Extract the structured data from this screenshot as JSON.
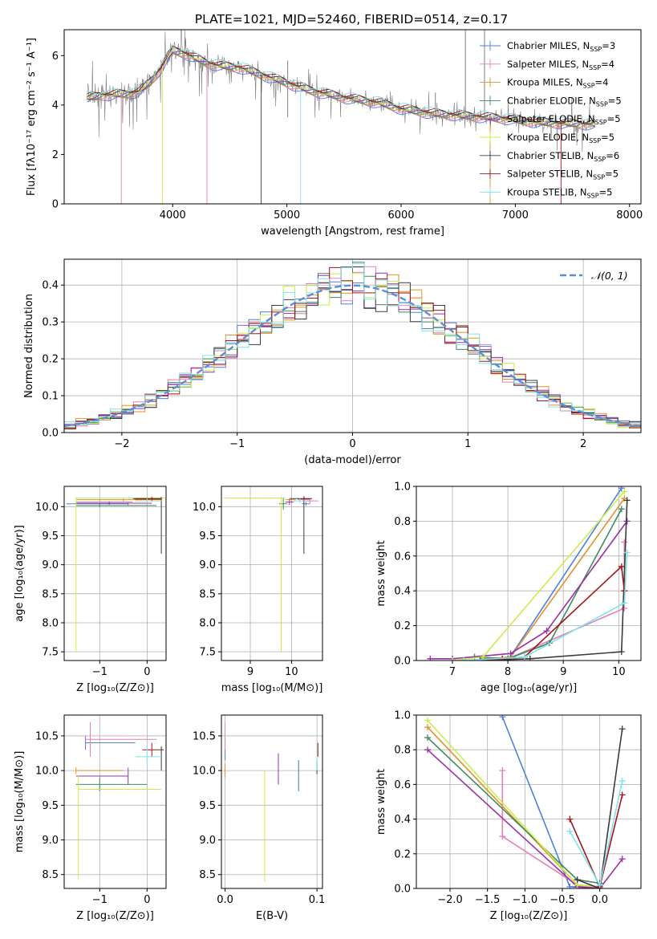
{
  "figure_title": "PLATE=1021, MJD=52460, FIBERID=0514, z=0.17",
  "colors": {
    "data": "#808080",
    "series": [
      "#4f7fe0",
      "#e57fb7",
      "#e0922a",
      "#3f8a5e",
      "#9b2fa8",
      "#c9ee4a",
      "#3b3b3b",
      "#a8121a",
      "#7fe3ec"
    ]
  },
  "chart_data": [
    {
      "id": "spectrum",
      "type": "line",
      "xlabel": "wavelength [Angstrom, rest frame]",
      "ylabel": "Flux [fλ10⁻¹⁷ erg cm⁻² s⁻¹ A⁻¹]",
      "xlim": [
        3050,
        8100
      ],
      "ylim": [
        0,
        7.05
      ],
      "xticks": [
        4000,
        5000,
        6000,
        7000,
        8000
      ],
      "yticks": [
        0,
        2,
        4,
        6
      ],
      "grid": false,
      "legend_position": "top-right",
      "legend": [
        {
          "label": "Chabrier MILES, N",
          "sub": "SSP",
          "tail": "=3"
        },
        {
          "label": "Salpeter MILES, N",
          "sub": "SSP",
          "tail": "=4"
        },
        {
          "label": "Kroupa MILES, N",
          "sub": "SSP",
          "tail": "=4"
        },
        {
          "label": "Chabrier ELODIE, N",
          "sub": "SSP",
          "tail": "=5"
        },
        {
          "label": "Salpeter ELODIE, N",
          "sub": "SSP",
          "tail": "=5"
        },
        {
          "label": "Kroupa ELODIE, N",
          "sub": "SSP",
          "tail": "=5"
        },
        {
          "label": "Chabrier STELIB, N",
          "sub": "SSP",
          "tail": "=6"
        },
        {
          "label": "Salpeter STELIB, N",
          "sub": "SSP",
          "tail": "=5"
        },
        {
          "label": "Kroupa STELIB, N",
          "sub": "SSP",
          "tail": "=5"
        }
      ],
      "continuum": {
        "x": [
          3200,
          3400,
          3600,
          3700,
          3800,
          3900,
          3950,
          4000,
          4100,
          4200,
          4300,
          4400,
          4600,
          4800,
          5000,
          5200,
          5500,
          5800,
          6000,
          6300,
          6600,
          6900,
          7200,
          7500,
          7750
        ],
        "y": [
          4.25,
          4.4,
          4.45,
          4.55,
          4.9,
          5.5,
          5.9,
          6.2,
          6.1,
          5.9,
          5.7,
          5.6,
          5.5,
          5.2,
          4.9,
          4.6,
          4.3,
          4.1,
          3.85,
          3.65,
          3.55,
          3.45,
          3.3,
          3.25,
          3.2
        ]
      }
    },
    {
      "id": "residuals",
      "type": "histogram",
      "xlabel": "(data-model)/error",
      "ylabel": "Normed distribution",
      "xlim": [
        -2.5,
        2.5
      ],
      "ylim": [
        0,
        0.47
      ],
      "xticks": [
        -2,
        -1,
        0,
        1,
        2
      ],
      "yticks": [
        0.0,
        0.1,
        0.2,
        0.3,
        0.4
      ],
      "grid": true,
      "legend": "𝒩(0, 1)",
      "legend_position": "top-right",
      "bins": [
        -2.5,
        2.5,
        50
      ]
    },
    {
      "id": "age-vs-Z",
      "type": "errorbar",
      "xlabel": "Z [log₁₀(Z/Z⊙)]",
      "ylabel": "age  [log₁₀(age/yr)]",
      "xlim": [
        -1.75,
        0.4
      ],
      "ylim": [
        7.35,
        10.35
      ],
      "xticks": [
        -1,
        0
      ],
      "yticks": [
        7.5,
        8.0,
        8.5,
        9.0,
        9.5,
        10.0
      ],
      "grid": true,
      "points": [
        {
          "s": 0,
          "x": -0.4,
          "xe": [
            1.3,
            0
          ],
          "y": 10.05,
          "ye": [
            0.03,
            0.03
          ]
        },
        {
          "s": 1,
          "x": -1.0,
          "xe": [
            0.5,
            0.7
          ],
          "y": 10.08,
          "ye": [
            0.04,
            0.04
          ]
        },
        {
          "s": 2,
          "x": -0.5,
          "xe": [
            1.0,
            0.8
          ],
          "y": 10.12,
          "ye": [
            0.03,
            0.03
          ]
        },
        {
          "s": 3,
          "x": -1.0,
          "xe": [
            0.5,
            1.2
          ],
          "y": 10.02,
          "ye": [
            0.03,
            0.03
          ]
        },
        {
          "s": 4,
          "x": -0.8,
          "xe": [
            0.7,
            0.9
          ],
          "y": 10.06,
          "ye": [
            0.03,
            0.03
          ]
        },
        {
          "s": 5,
          "x": -1.5,
          "xe": [
            0,
            1.9
          ],
          "y": 10.15,
          "ye": [
            2.65,
            0.02
          ]
        },
        {
          "s": 6,
          "x": 0.3,
          "xe": [
            0.6,
            0
          ],
          "y": 10.14,
          "ye": [
            0.95,
            0.03
          ]
        },
        {
          "s": 7,
          "x": 0.1,
          "xe": [
            0.35,
            0.2
          ],
          "y": 10.13,
          "ye": [
            0.04,
            0.04
          ]
        },
        {
          "s": 8,
          "x": 0.0,
          "xe": [
            0.25,
            0.3
          ],
          "y": 10.1,
          "ye": [
            0.04,
            0.04
          ]
        }
      ]
    },
    {
      "id": "age-vs-mass",
      "type": "errorbar",
      "xlabel": "mass [log₁₀(M/M⊙)]",
      "ylabel": "",
      "xlim": [
        8.3,
        10.75
      ],
      "ylim": [
        7.35,
        10.35
      ],
      "xticks": [
        9,
        10
      ],
      "yticks": [
        7.5,
        8.0,
        8.5,
        9.0,
        9.5,
        10.0
      ],
      "grid": true,
      "points": [
        {
          "s": 0,
          "x": 10.35,
          "xe": [
            0.1,
            0.1
          ],
          "y": 10.05,
          "ye": [
            0.03,
            0.03
          ]
        },
        {
          "s": 1,
          "x": 10.45,
          "xe": [
            0.2,
            0.2
          ],
          "y": 10.1,
          "ye": [
            0.04,
            0.04
          ]
        },
        {
          "s": 2,
          "x": 10.0,
          "xe": [
            0.15,
            0.1
          ],
          "y": 10.12,
          "ye": [
            0.03,
            0.03
          ]
        },
        {
          "s": 3,
          "x": 9.8,
          "xe": [
            0.1,
            0.1
          ],
          "y": 10.05,
          "ye": [
            0.1,
            0.1
          ]
        },
        {
          "s": 4,
          "x": 9.95,
          "xe": [
            0.1,
            0.1
          ],
          "y": 10.08,
          "ye": [
            0.05,
            0.05
          ]
        },
        {
          "s": 5,
          "x": 9.75,
          "xe": [
            1.4,
            0.1
          ],
          "y": 10.15,
          "ye": [
            2.65,
            0.02
          ]
        },
        {
          "s": 6,
          "x": 10.3,
          "xe": [
            0.35,
            0.2
          ],
          "y": 10.14,
          "ye": [
            0.95,
            0.03
          ]
        },
        {
          "s": 7,
          "x": 10.3,
          "xe": [
            0.15,
            0.15
          ],
          "y": 10.13,
          "ye": [
            0.05,
            0.05
          ]
        },
        {
          "s": 8,
          "x": 10.2,
          "xe": [
            0.15,
            0.15
          ],
          "y": 10.1,
          "ye": [
            0.04,
            0.04
          ]
        }
      ]
    },
    {
      "id": "massweight-vs-age",
      "type": "line",
      "xlabel": "age  [log₁₀(age/yr)]",
      "ylabel": "mass weight",
      "xlim": [
        6.35,
        10.4
      ],
      "ylim": [
        0,
        1.0
      ],
      "xticks": [
        7,
        8,
        9,
        10
      ],
      "yticks": [
        0.0,
        0.2,
        0.4,
        0.6,
        0.8,
        1.0
      ],
      "grid": true,
      "series": [
        {
          "s": 0,
          "x": [
            7.55,
            8.0,
            10.05
          ],
          "y": [
            0.01,
            0.0,
            0.99
          ]
        },
        {
          "s": 1,
          "x": [
            7.5,
            8.0,
            10.1,
            10.1
          ],
          "y": [
            0.0,
            0.01,
            0.3,
            0.68
          ]
        },
        {
          "s": 2,
          "x": [
            7.6,
            8.05,
            10.1
          ],
          "y": [
            0.01,
            0.02,
            0.93
          ]
        },
        {
          "s": 3,
          "x": [
            7.4,
            8.0,
            8.75,
            10.05
          ],
          "y": [
            0.02,
            0.01,
            0.1,
            0.87
          ]
        },
        {
          "s": 4,
          "x": [
            6.6,
            7.0,
            8.05,
            8.7,
            10.15
          ],
          "y": [
            0.01,
            0.01,
            0.04,
            0.17,
            0.8
          ]
        },
        {
          "s": 5,
          "x": [
            7.0,
            7.55,
            10.1
          ],
          "y": [
            0.0,
            0.02,
            0.97
          ]
        },
        {
          "s": 6,
          "x": [
            7.5,
            8.4,
            10.05,
            10.15
          ],
          "y": [
            0.0,
            0.01,
            0.05,
            0.92
          ]
        },
        {
          "s": 7,
          "x": [
            7.5,
            7.9,
            8.3,
            10.05,
            10.1
          ],
          "y": [
            0.0,
            0.01,
            0.02,
            0.54,
            0.4
          ]
        },
        {
          "s": 8,
          "x": [
            7.2,
            8.3,
            10.1,
            10.15
          ],
          "y": [
            0.0,
            0.02,
            0.33,
            0.62
          ]
        }
      ]
    },
    {
      "id": "mass-vs-Z",
      "type": "errorbar",
      "xlabel": "Z [log₁₀(Z/Z⊙)]",
      "ylabel": "mass [log₁₀(M/M⊙)]",
      "xlim": [
        -1.75,
        0.4
      ],
      "ylim": [
        8.3,
        10.8
      ],
      "xticks": [
        -1,
        0
      ],
      "yticks": [
        8.5,
        9.0,
        9.5,
        10.0,
        10.5
      ],
      "grid": true,
      "points": [
        {
          "s": 0,
          "x": -1.3,
          "xe": [
            0,
            1.05
          ],
          "y": 10.4,
          "ye": [
            0.1,
            0.1
          ]
        },
        {
          "s": 1,
          "x": -1.2,
          "xe": [
            0.1,
            1.4
          ],
          "y": 10.45,
          "ye": [
            0.25,
            0.25
          ]
        },
        {
          "s": 2,
          "x": -1.5,
          "xe": [
            0,
            1.0
          ],
          "y": 10.0,
          "ye": [
            0.05,
            0.05
          ]
        },
        {
          "s": 3,
          "x": -1.0,
          "xe": [
            0.5,
            1.0
          ],
          "y": 9.8,
          "ye": [
            0.1,
            0.1
          ]
        },
        {
          "s": 4,
          "x": -0.4,
          "xe": [
            1.1,
            0
          ],
          "y": 9.92,
          "ye": [
            0.12,
            0.12
          ]
        },
        {
          "s": 5,
          "x": -1.45,
          "xe": [
            0,
            1.75
          ],
          "y": 9.73,
          "ye": [
            1.3,
            0.2
          ]
        },
        {
          "s": 6,
          "x": 0.3,
          "xe": [
            0,
            0.05
          ],
          "y": 10.3,
          "ye": [
            0.3,
            0.05
          ]
        },
        {
          "s": 7,
          "x": 0.1,
          "xe": [
            0.2,
            0.2
          ],
          "y": 10.3,
          "ye": [
            0.1,
            0.1
          ]
        },
        {
          "s": 8,
          "x": 0.0,
          "xe": [
            0.25,
            0.3
          ],
          "y": 10.2,
          "ye": [
            0.15,
            0.15
          ]
        }
      ]
    },
    {
      "id": "mass-vs-ebv",
      "type": "errorbar",
      "xlabel": "E(B-V)",
      "ylabel": "",
      "xlim": [
        -0.004,
        0.106
      ],
      "ylim": [
        8.3,
        10.8
      ],
      "xticks": [
        0.0,
        0.1
      ],
      "yticks": [
        8.5,
        9.0,
        9.5,
        10.0,
        10.5
      ],
      "grid": true,
      "points": [
        {
          "s": 0,
          "x": 0.0,
          "y": 10.3,
          "ye": [
            0.15,
            0.15
          ]
        },
        {
          "s": 1,
          "x": 0.0,
          "y": 10.5,
          "ye": [
            0.2,
            0.2
          ]
        },
        {
          "s": 2,
          "x": 0.0,
          "y": 10.0,
          "ye": [
            0.1,
            0.1
          ]
        },
        {
          "s": 3,
          "x": 0.08,
          "y": 9.9,
          "ye": [
            0.2,
            0.25
          ]
        },
        {
          "s": 4,
          "x": 0.058,
          "y": 10.0,
          "ye": [
            0.2,
            0.25
          ]
        },
        {
          "s": 5,
          "x": 0.043,
          "y": 9.2,
          "ye": [
            0.8,
            0.8
          ]
        },
        {
          "s": 6,
          "x": 0.1,
          "y": 10.05,
          "ye": [
            0.1,
            0.1
          ]
        },
        {
          "s": 7,
          "x": 0.101,
          "y": 10.3,
          "ye": [
            0.1,
            0.1
          ]
        },
        {
          "s": 8,
          "x": 0.1,
          "y": 10.1,
          "ye": [
            0.1,
            0.1
          ]
        }
      ]
    },
    {
      "id": "massweight-vs-Z",
      "type": "line",
      "xlabel": "Z [log₁₀(Z/Z⊙)]",
      "ylabel": "mass weight",
      "xlim": [
        -2.45,
        0.55
      ],
      "ylim": [
        0,
        1.0
      ],
      "xticks": [
        -2.0,
        -1.5,
        -1.0,
        -0.5,
        0.0
      ],
      "yticks": [
        0.0,
        0.2,
        0.4,
        0.6,
        0.8,
        1.0
      ],
      "grid": true,
      "series": [
        {
          "s": 0,
          "x": [
            -1.3,
            -0.4,
            0.0
          ],
          "y": [
            0.99,
            0.01,
            0.0
          ]
        },
        {
          "s": 1,
          "x": [
            -1.3,
            -1.3,
            -0.3,
            0.0
          ],
          "y": [
            0.68,
            0.3,
            0.02,
            0.0
          ]
        },
        {
          "s": 2,
          "x": [
            -2.3,
            -0.3,
            0.0
          ],
          "y": [
            0.93,
            0.02,
            0.01
          ]
        },
        {
          "s": 3,
          "x": [
            -2.3,
            -0.3,
            0.0
          ],
          "y": [
            0.87,
            0.05,
            0.03
          ]
        },
        {
          "s": 4,
          "x": [
            -2.3,
            -0.3,
            0.0,
            0.3
          ],
          "y": [
            0.8,
            0.01,
            0.0,
            0.17
          ]
        },
        {
          "s": 5,
          "x": [
            -2.3,
            -0.3,
            0.0
          ],
          "y": [
            0.97,
            0.02,
            0.01
          ]
        },
        {
          "s": 6,
          "x": [
            -0.3,
            0.0,
            0.3
          ],
          "y": [
            0.05,
            0.0,
            0.92
          ]
        },
        {
          "s": 7,
          "x": [
            -0.4,
            0.0,
            0.3
          ],
          "y": [
            0.4,
            0.01,
            0.54
          ]
        },
        {
          "s": 8,
          "x": [
            -0.4,
            0.0,
            0.3
          ],
          "y": [
            0.33,
            0.02,
            0.62
          ]
        }
      ]
    }
  ]
}
